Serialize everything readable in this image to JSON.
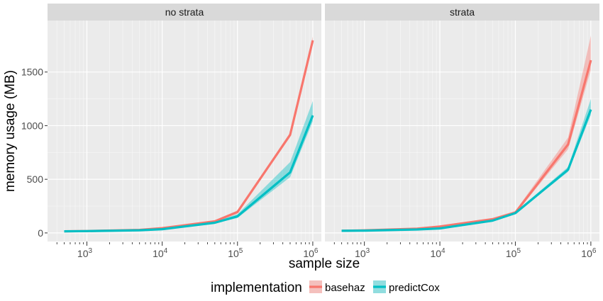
{
  "chart_data": {
    "type": "line",
    "facet_by": "strata",
    "panels": [
      {
        "title": "no strata",
        "series": [
          {
            "name": "basehaz",
            "color": "#F8766D",
            "x": [
              500,
              1000,
              5000,
              10000,
              50000,
              100000,
              500000,
              1000000
            ],
            "y": [
              15,
              18,
              28,
              45,
              108,
              195,
              915,
              1795
            ],
            "lower": [
              12,
              14,
              24,
              38,
              100,
              180,
              895,
              1770
            ],
            "upper": [
              20,
              22,
              33,
              52,
              118,
              210,
              935,
              1830
            ]
          },
          {
            "name": "predictCox",
            "color": "#00BFC4",
            "x": [
              500,
              1000,
              5000,
              10000,
              50000,
              100000,
              500000,
              1000000
            ],
            "y": [
              15,
              17,
              25,
              35,
              95,
              155,
              565,
              1095
            ],
            "lower": [
              12,
              14,
              21,
              30,
              88,
              140,
              520,
              1040
            ],
            "upper": [
              19,
              21,
              30,
              42,
              105,
              175,
              660,
              1230
            ]
          }
        ]
      },
      {
        "title": "strata",
        "series": [
          {
            "name": "basehaz",
            "color": "#F8766D",
            "x": [
              500,
              1000,
              5000,
              10000,
              50000,
              100000,
              500000,
              1000000
            ],
            "y": [
              20,
              24,
              40,
              60,
              128,
              190,
              825,
              1610
            ],
            "lower": [
              16,
              20,
              34,
              52,
              118,
              180,
              780,
              1520
            ],
            "upper": [
              25,
              29,
              46,
              70,
              140,
              205,
              890,
              1840
            ]
          },
          {
            "name": "predictCox",
            "color": "#00BFC4",
            "x": [
              500,
              1000,
              5000,
              10000,
              50000,
              100000,
              500000,
              1000000
            ],
            "y": [
              20,
              22,
              32,
              42,
              115,
              185,
              590,
              1150
            ],
            "lower": [
              16,
              19,
              28,
              37,
              108,
              178,
              570,
              1100
            ],
            "upper": [
              24,
              26,
              37,
              48,
              122,
              195,
              615,
              1250
            ]
          }
        ]
      }
    ],
    "x_scale": "log10",
    "xlim": [
      300,
      1300000
    ],
    "ylim": [
      -80,
      1980
    ],
    "x_ticks": [
      1000,
      10000,
      100000,
      1000000
    ],
    "x_tick_labels": [
      {
        "base": "10",
        "exp": "3"
      },
      {
        "base": "10",
        "exp": "4"
      },
      {
        "base": "10",
        "exp": "5"
      },
      {
        "base": "10",
        "exp": "6"
      }
    ],
    "y_ticks": [
      0,
      500,
      1000,
      1500
    ],
    "y_tick_labels": [
      "0",
      "500",
      "1000",
      "1500"
    ],
    "xlabel": "sample size",
    "ylabel": "memory usage (MB)",
    "legend": {
      "title": "implementation",
      "position": "bottom",
      "entries": [
        "basehaz",
        "predictCox"
      ]
    },
    "grid": true
  }
}
